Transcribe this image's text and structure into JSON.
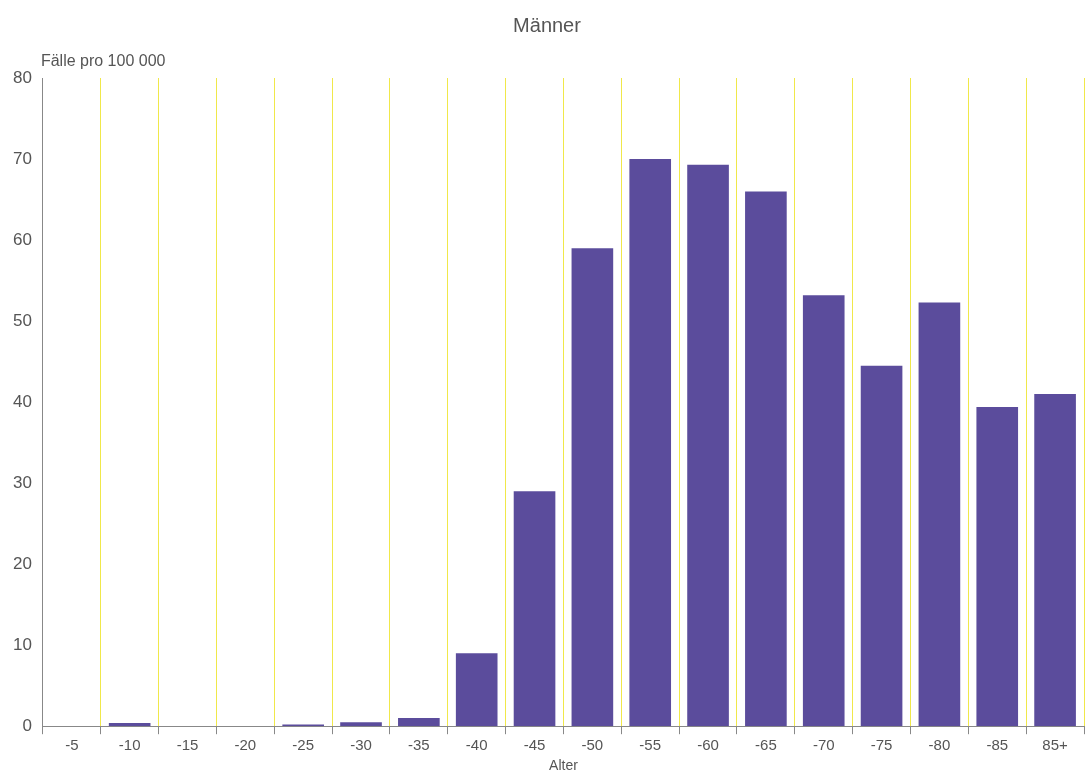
{
  "chart_data": {
    "type": "bar",
    "title": "Männer",
    "xlabel": "Alter",
    "ylabel": "Fälle pro 100 000",
    "categories": [
      "-5",
      "-10",
      "-15",
      "-20",
      "-25",
      "-30",
      "-35",
      "-40",
      "-45",
      "-50",
      "-55",
      "-60",
      "-65",
      "-70",
      "-75",
      "-80",
      "-85",
      "85+"
    ],
    "values": [
      0,
      0.4,
      0,
      0,
      0.2,
      0.5,
      1,
      9,
      29,
      59,
      70,
      69.3,
      66,
      53.2,
      44.5,
      52.3,
      39.4,
      41
    ],
    "color": "#5b4c9c",
    "ylim": [
      0,
      80
    ],
    "yticks": [
      0,
      10,
      20,
      30,
      40,
      50,
      60,
      70,
      80
    ],
    "grid": "x",
    "legend": false
  }
}
